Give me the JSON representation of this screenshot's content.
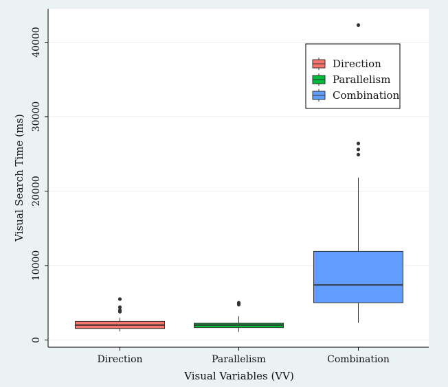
{
  "chart_data": {
    "type": "box",
    "xlabel": "Visual Variables (VV)",
    "ylabel": "Visual Search Time (ms)",
    "ylim": [
      -1000,
      44500
    ],
    "yticks": [
      0,
      10000,
      20000,
      30000,
      40000
    ],
    "grid": true,
    "legend_position": "top-right",
    "categories": [
      "Direction",
      "Parallelism",
      "Combination"
    ],
    "series": [
      {
        "name": "Direction",
        "color": "#f8766d",
        "whisker_low": 1150,
        "q1": 1550,
        "median": 2000,
        "q3": 2500,
        "whisker_high": 3000,
        "outliers": [
          3800,
          4000,
          4400,
          5500
        ]
      },
      {
        "name": "Parallelism",
        "color": "#00ba38",
        "whisker_low": 1100,
        "q1": 1650,
        "median": 2000,
        "q3": 2250,
        "whisker_high": 3200,
        "outliers": [
          4750,
          4900,
          5000
        ]
      },
      {
        "name": "Combination",
        "color": "#619cff",
        "whisker_low": 2300,
        "q1": 5000,
        "median": 7400,
        "q3": 11900,
        "whisker_high": 21800,
        "outliers": [
          24900,
          25600,
          26400,
          42300
        ]
      }
    ]
  }
}
